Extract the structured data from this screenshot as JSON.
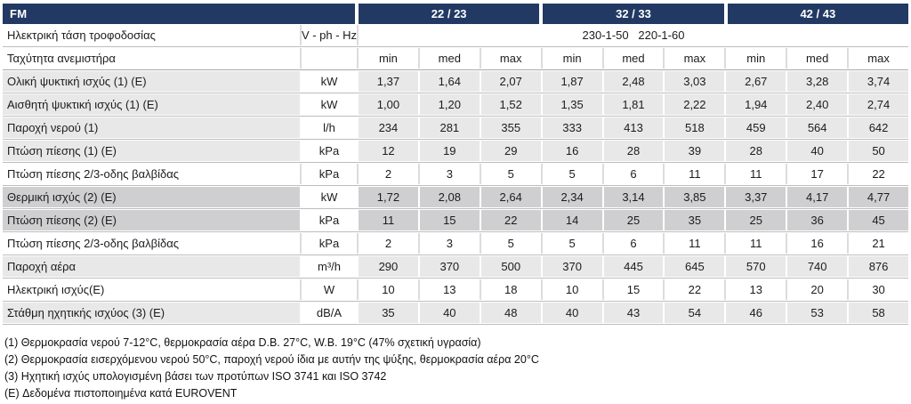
{
  "colors": {
    "header_navy": "#223963",
    "row_light": "#e8e8e9",
    "row_dark": "#cfcfd1",
    "grid_line": "#bdbdbd"
  },
  "table": {
    "model_label": "FM",
    "groups": [
      "22 / 23",
      "32 / 33",
      "42 / 43"
    ],
    "voltage_row": {
      "label": "Ηλεκτρική τάση τροφοδοσίας",
      "unit": "V - ph - Hz",
      "value": "230-1-50   220-1-60"
    },
    "speed_row": {
      "label": "Ταχύτητα ανεμιστήρα",
      "speeds": [
        "min",
        "med",
        "max"
      ]
    },
    "rows": [
      {
        "label": "Ολική ψυκτική ισχύς (1) (E)",
        "unit": "kW",
        "bg": "light",
        "values": [
          "1,37",
          "1,64",
          "2,07",
          "1,87",
          "2,48",
          "3,03",
          "2,67",
          "3,28",
          "3,74"
        ]
      },
      {
        "label": "Αισθητή ψυκτική ισχύς (1) (E)",
        "unit": "kW",
        "bg": "light",
        "values": [
          "1,00",
          "1,20",
          "1,52",
          "1,35",
          "1,81",
          "2,22",
          "1,94",
          "2,40",
          "2,74"
        ]
      },
      {
        "label": "Παροχή νερού (1)",
        "unit": "l/h",
        "bg": "light",
        "values": [
          "234",
          "281",
          "355",
          "333",
          "413",
          "518",
          "459",
          "564",
          "642"
        ]
      },
      {
        "label": "Πτώση πίεσης (1) (E)",
        "unit": "kPa",
        "bg": "light",
        "values": [
          "12",
          "19",
          "29",
          "16",
          "28",
          "39",
          "28",
          "40",
          "50"
        ]
      },
      {
        "label": "Πτώση πίεσης 2/3-οδης βαλβίδας",
        "unit": "kPa",
        "bg": "white",
        "values": [
          "2",
          "3",
          "5",
          "5",
          "6",
          "11",
          "11",
          "17",
          "22"
        ]
      },
      {
        "label": "Θερμική ισχύς (2) (E)",
        "unit": "kW",
        "bg": "dark",
        "values": [
          "1,72",
          "2,08",
          "2,64",
          "2,34",
          "3,14",
          "3,85",
          "3,37",
          "4,17",
          "4,77"
        ]
      },
      {
        "label": "Πτώση πίεσης (2) (E)",
        "unit": "kPa",
        "bg": "dark",
        "values": [
          "11",
          "15",
          "22",
          "14",
          "25",
          "35",
          "25",
          "36",
          "45"
        ]
      },
      {
        "label": "Πτώση πίεσης 2/3-οδης βαλβίδας",
        "unit": "kPa",
        "bg": "white",
        "values": [
          "2",
          "3",
          "5",
          "5",
          "6",
          "11",
          "11",
          "16",
          "21"
        ]
      },
      {
        "label": "Παροχή αέρα",
        "unit": "m³/h",
        "bg": "light",
        "values": [
          "290",
          "370",
          "500",
          "370",
          "445",
          "645",
          "570",
          "740",
          "876"
        ]
      },
      {
        "label": "Ηλεκτρική ισχύς(E)",
        "unit": "W",
        "bg": "white",
        "values": [
          "10",
          "13",
          "18",
          "10",
          "15",
          "22",
          "13",
          "20",
          "30"
        ]
      },
      {
        "label": "Στάθμη ηχητικής ισχύος (3) (E)",
        "unit": "dB/A",
        "bg": "light",
        "values": [
          "35",
          "40",
          "48",
          "40",
          "43",
          "54",
          "46",
          "53",
          "58"
        ]
      }
    ],
    "footnotes": [
      "(1) Θερμοκρασία νερού 7-12°C, θερμοκρασία αέρα D.B. 27°C, W.B. 19°C (47% σχετική υγρασία)",
      "(2) Θερμοκρασία εισερχόμενου νερού 50°C, παροχή νερού ίδια με αυτήν της ψύξης, θερμοκρασία αέρα 20°C",
      "(3) Ηχητική ισχύς υπολογισμένη βάσει των προτύπων ISO 3741 και ISO 3742",
      "(E) Δεδομένα πιστοποιημένα κατά EUROVENT"
    ]
  }
}
